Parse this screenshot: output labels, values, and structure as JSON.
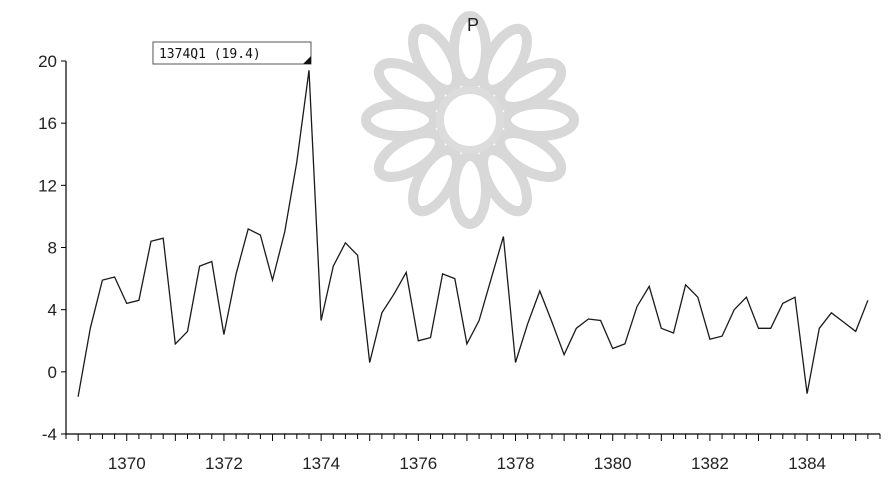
{
  "chart_data": {
    "type": "line",
    "title": "P",
    "xlabel": "",
    "ylabel": "",
    "x_start": "1369Q1",
    "x_tick_labels": [
      "1370",
      "1372",
      "1374",
      "1376",
      "1378",
      "1380",
      "1382",
      "1384"
    ],
    "y_tick_labels": [
      "-4",
      "0",
      "4",
      "8",
      "12",
      "16",
      "20"
    ],
    "ylim": [
      -4,
      20
    ],
    "xlim": [
      1368.75,
      1385.5
    ],
    "grid": false,
    "annotation": {
      "label": "1374Q1 (19.4)",
      "x": 1373.75,
      "y": 19.4
    },
    "series": [
      {
        "x": [
          1369.0,
          1369.25,
          1369.5,
          1369.75,
          1370.0,
          1370.25,
          1370.5,
          1370.75,
          1371.0,
          1371.25,
          1371.5,
          1371.75,
          1372.0,
          1372.25,
          1372.5,
          1372.75,
          1373.0,
          1373.25,
          1373.5,
          1373.75,
          1374.0,
          1374.25,
          1374.5,
          1374.75,
          1375.0,
          1375.25,
          1375.5,
          1375.75,
          1376.0,
          1376.25,
          1376.5,
          1376.75,
          1377.0,
          1377.25,
          1377.5,
          1377.75,
          1378.0,
          1378.25,
          1378.5,
          1378.75,
          1379.0,
          1379.25,
          1379.5,
          1379.75,
          1380.0,
          1380.25,
          1380.5,
          1380.75,
          1381.0,
          1381.25,
          1381.5,
          1381.75,
          1382.0,
          1382.25,
          1382.5,
          1382.75,
          1383.0,
          1383.25,
          1383.5,
          1383.75,
          1384.0,
          1384.25,
          1384.5,
          1384.75,
          1385.0,
          1385.25
        ],
        "values": [
          -1.6,
          2.8,
          5.9,
          6.1,
          4.4,
          4.6,
          8.4,
          8.6,
          1.8,
          2.6,
          6.8,
          7.1,
          2.4,
          6.3,
          9.2,
          8.8,
          5.9,
          9.0,
          13.5,
          19.4,
          3.3,
          6.8,
          8.3,
          7.5,
          0.6,
          3.8,
          5.0,
          6.4,
          2.0,
          2.2,
          6.3,
          6.0,
          1.8,
          3.3,
          6.0,
          8.7,
          0.6,
          3.1,
          5.2,
          3.2,
          1.1,
          2.8,
          3.4,
          3.3,
          1.5,
          1.8,
          4.2,
          5.5,
          2.8,
          2.5,
          5.6,
          4.8,
          2.1,
          2.3,
          4.0,
          4.8,
          2.8,
          2.8,
          4.4,
          4.8,
          -1.4,
          2.8,
          3.8,
          3.2,
          2.6,
          4.6
        ]
      }
    ]
  }
}
